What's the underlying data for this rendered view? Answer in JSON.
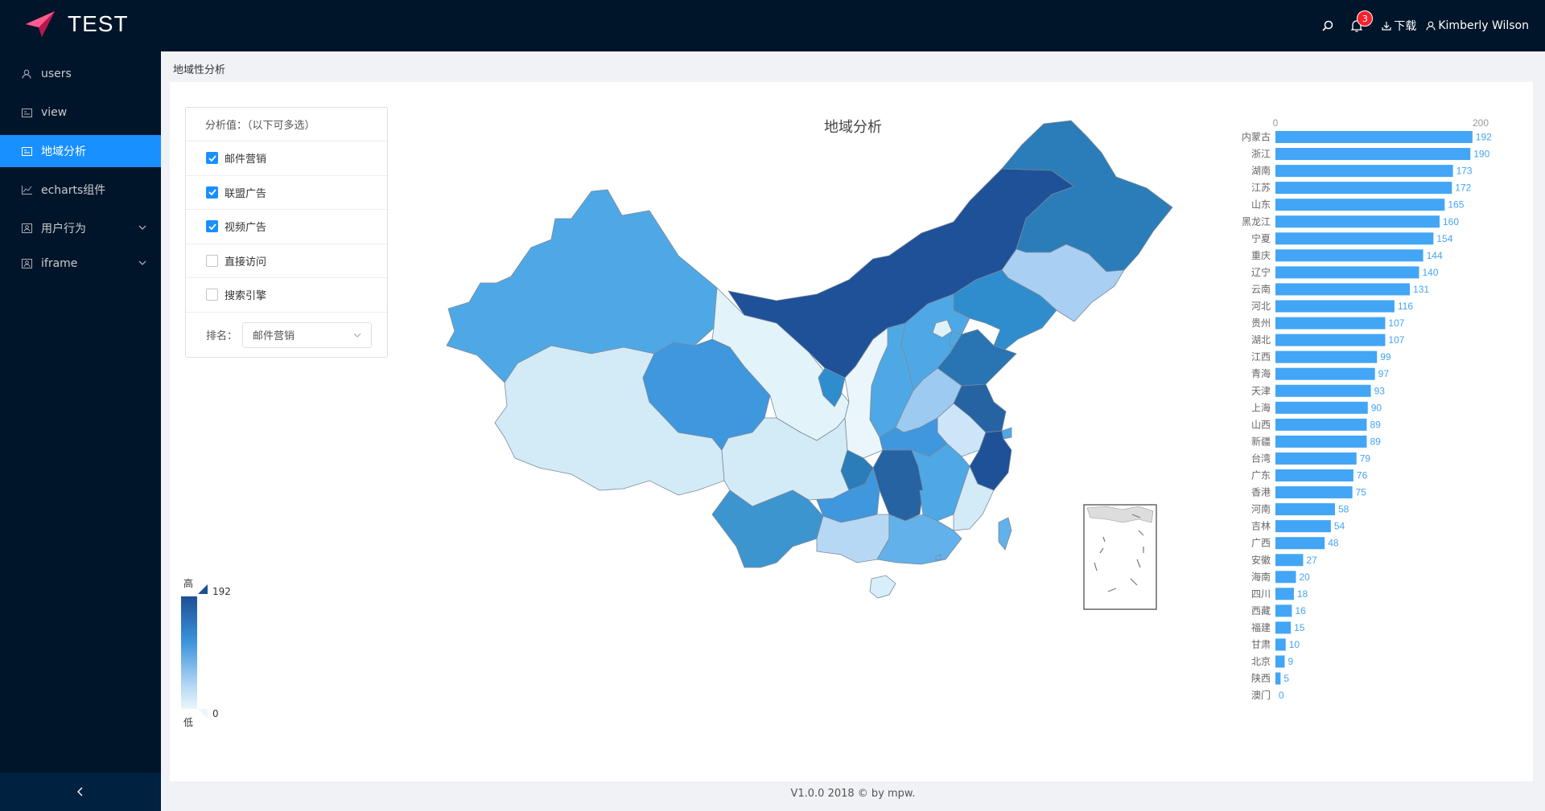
{
  "header": {
    "app_title": "TEST",
    "notification_count": "3",
    "download_label": "下载",
    "user_name": "Kimberly Wilson"
  },
  "sidebar": {
    "items": [
      {
        "label": "users",
        "icon": "user-icon"
      },
      {
        "label": "view",
        "icon": "image-icon"
      },
      {
        "label": "地域分析",
        "icon": "image-icon",
        "active": true
      },
      {
        "label": "echarts组件",
        "icon": "line-chart-icon"
      },
      {
        "label": "用户行为",
        "icon": "user-box-icon",
        "expandable": true
      },
      {
        "label": "iframe",
        "icon": "user-box-icon",
        "expandable": true
      }
    ],
    "collapse_icon": "chevron-left-icon"
  },
  "breadcrumb": "地域性分析",
  "filters": {
    "title": "分析值：（以下可多选）",
    "options": [
      {
        "label": "邮件营销",
        "checked": true
      },
      {
        "label": "联盟广告",
        "checked": true
      },
      {
        "label": "视频广告",
        "checked": true
      },
      {
        "label": "直接访问",
        "checked": false
      },
      {
        "label": "搜索引擎",
        "checked": false
      }
    ],
    "rank_label": "排名：",
    "rank_value": "邮件营销"
  },
  "map": {
    "title": "地域分析"
  },
  "legend": {
    "high_label": "高",
    "low_label": "低",
    "max": "192",
    "min": "0",
    "colors": [
      "#1e4f95",
      "#3a93dc",
      "#b7d8f5",
      "#eaf6fb"
    ]
  },
  "chart_data": {
    "type": "bar",
    "orientation": "horizontal",
    "categories": [
      "内蒙古",
      "浙江",
      "湖南",
      "江苏",
      "山东",
      "黑龙江",
      "宁夏",
      "重庆",
      "辽宁",
      "云南",
      "河北",
      "贵州",
      "湖北",
      "江西",
      "青海",
      "天津",
      "上海",
      "山西",
      "新疆",
      "台湾",
      "广东",
      "香港",
      "河南",
      "吉林",
      "广西",
      "安徽",
      "海南",
      "四川",
      "西藏",
      "福建",
      "甘肃",
      "北京",
      "陕西",
      "澳门"
    ],
    "values": [
      192,
      190,
      173,
      172,
      165,
      160,
      154,
      144,
      140,
      131,
      116,
      107,
      107,
      99,
      97,
      93,
      90,
      89,
      89,
      79,
      76,
      75,
      58,
      54,
      48,
      27,
      20,
      18,
      16,
      15,
      10,
      9,
      5,
      0
    ],
    "xlim": [
      0,
      200
    ],
    "x_ticks": [
      "0",
      "200"
    ],
    "bar_color": "#42a5f5",
    "grid": false
  },
  "footer": "V1.0.0 2018 © by mpw."
}
